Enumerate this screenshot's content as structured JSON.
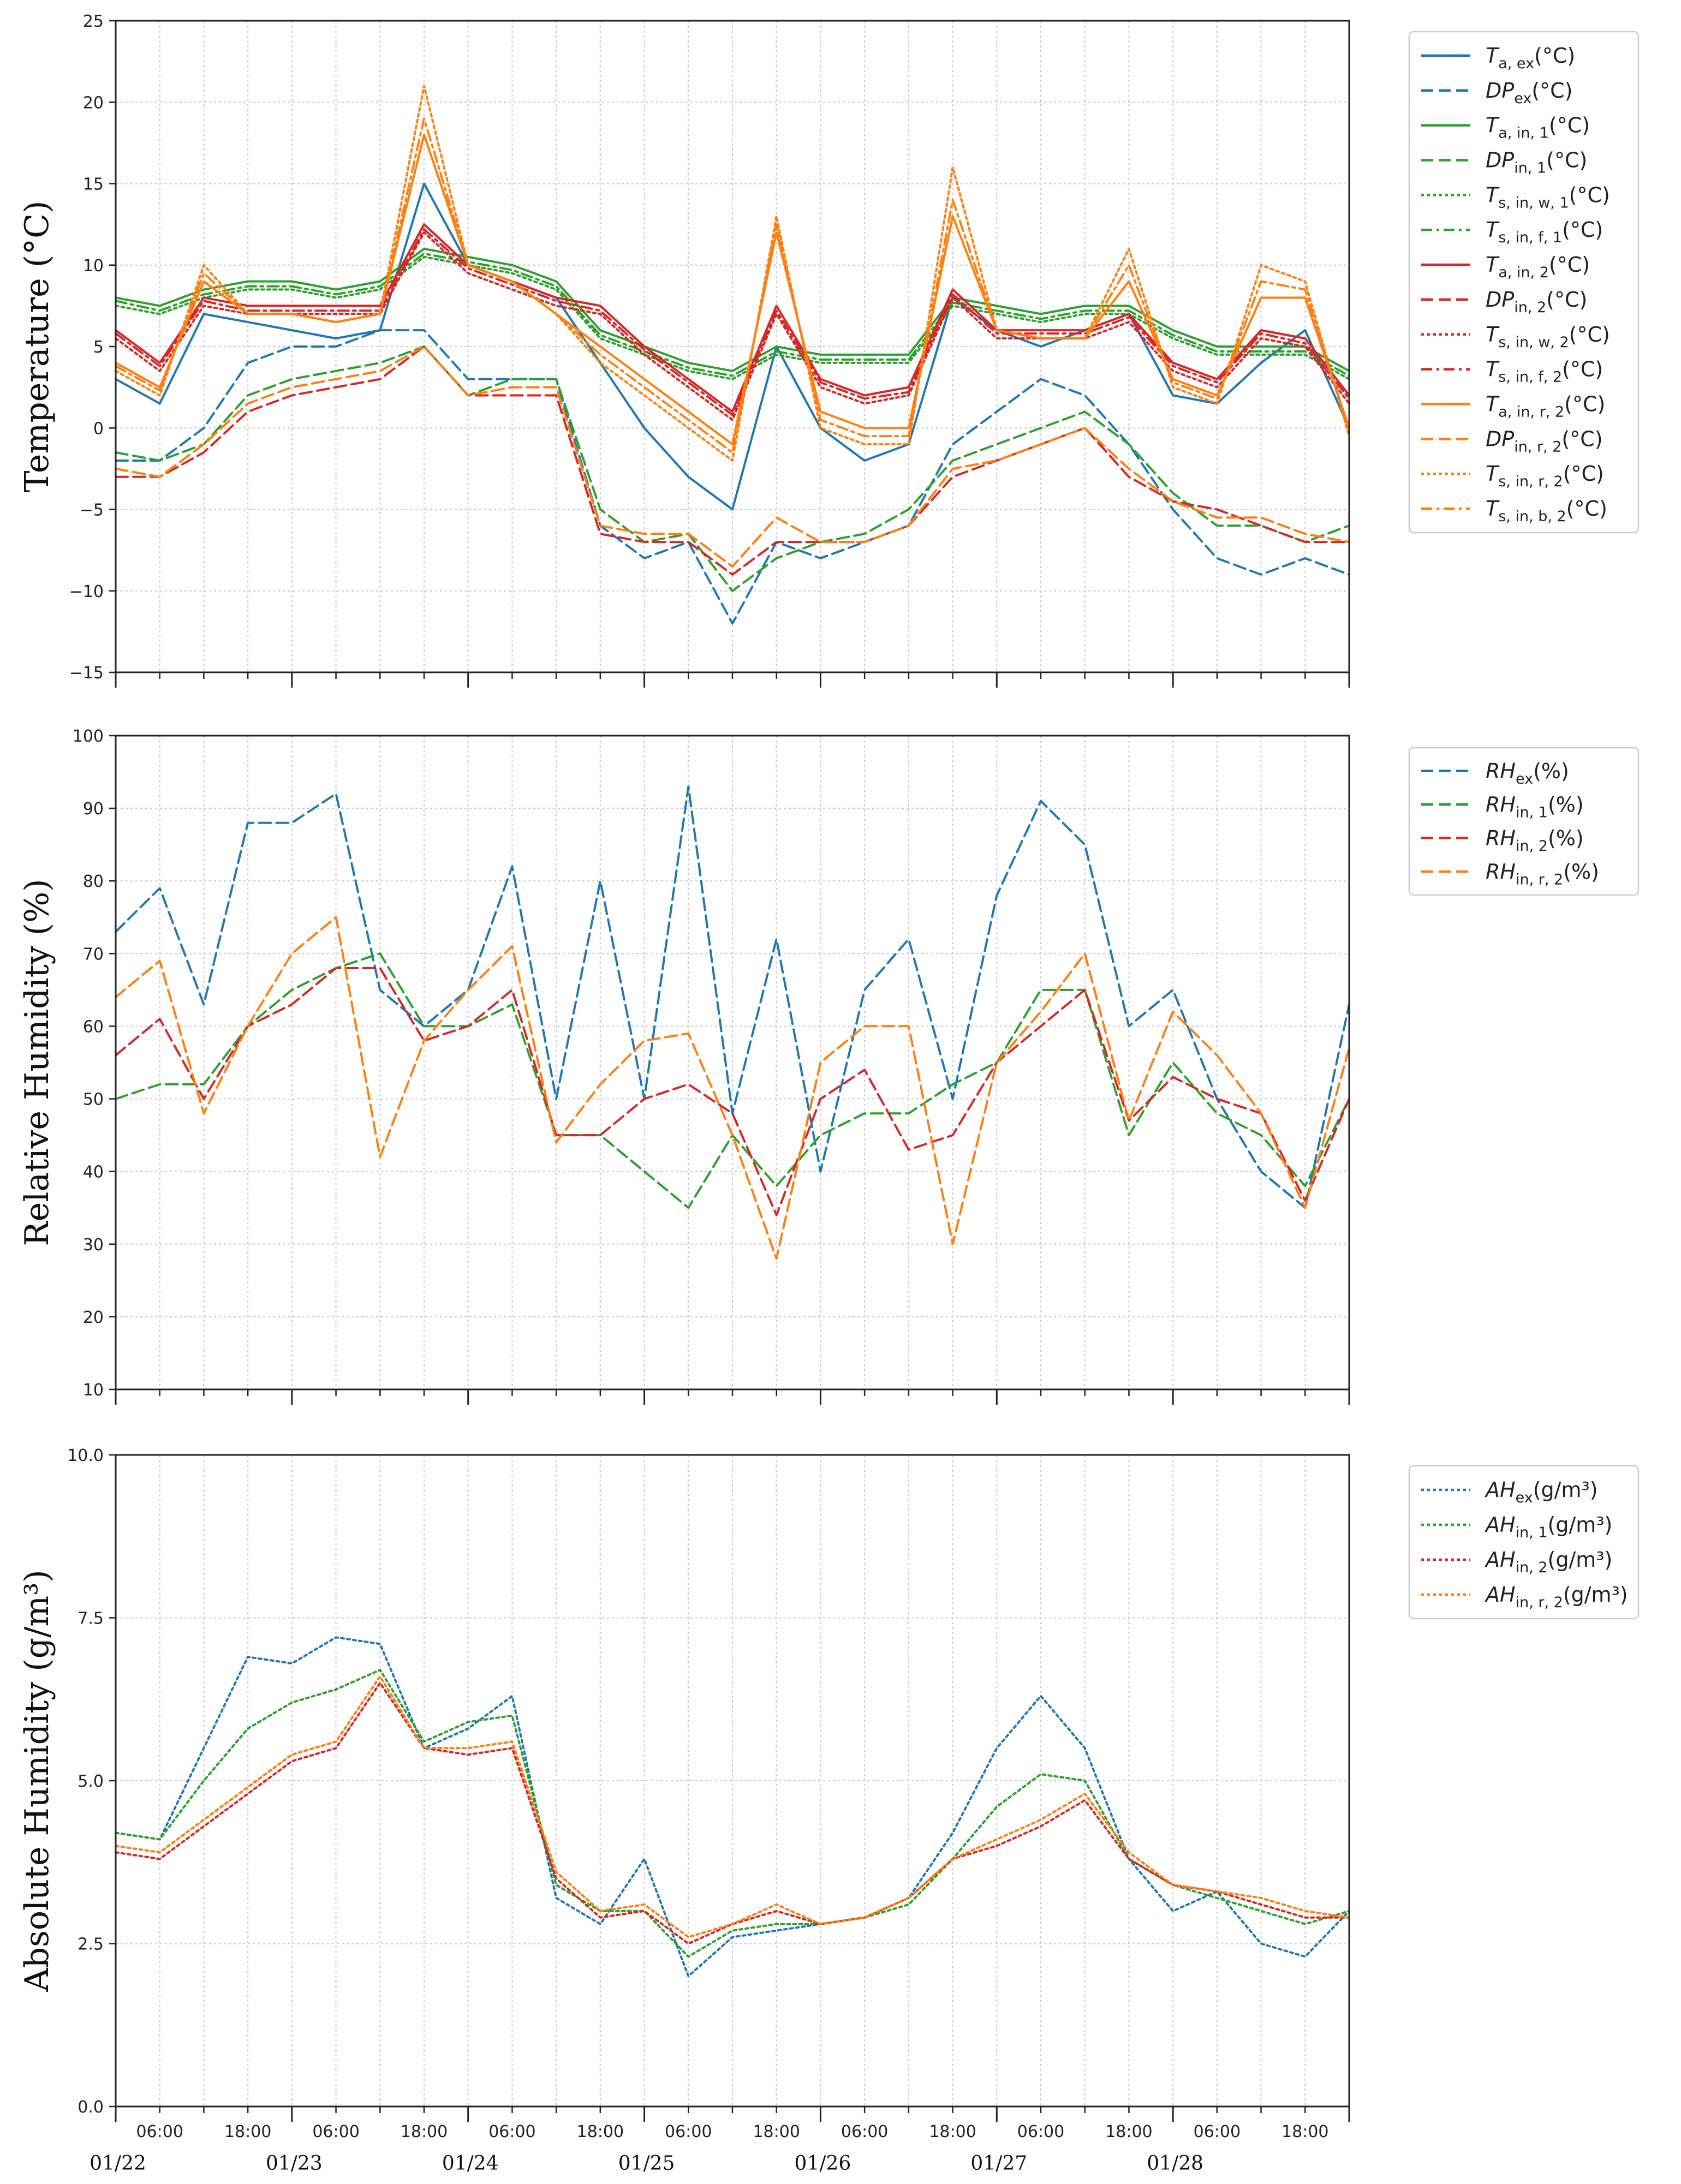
{
  "colors": {
    "blue": "#1f77b4",
    "green": "#2ca02c",
    "red": "#d62728",
    "orange": "#ff7f0e"
  },
  "x_axis": {
    "domain_hours": [
      0,
      168
    ],
    "time_labels": [
      "06:00",
      "18:00",
      "06:00",
      "18:00",
      "06:00",
      "18:00",
      "06:00",
      "18:00",
      "06:00",
      "18:00",
      "06:00",
      "18:00",
      "06:00",
      "18:00"
    ],
    "time_label_hours": [
      6,
      18,
      30,
      42,
      54,
      66,
      78,
      90,
      102,
      114,
      126,
      138,
      150,
      162
    ],
    "date_labels": [
      "01/22",
      "01/23",
      "01/24",
      "01/25",
      "01/26",
      "01/27",
      "01/28"
    ],
    "date_label_hours": [
      0,
      24,
      48,
      72,
      96,
      120,
      144
    ]
  },
  "chart_data": [
    {
      "type": "line",
      "id": "temperature",
      "ylabel": "Temperature (°C)",
      "ylim": [
        -15,
        25
      ],
      "yticks": [
        -15,
        -10,
        -5,
        0,
        5,
        10,
        15,
        20,
        25
      ],
      "ytick_labels": [
        "−15",
        "−10",
        "−5",
        "0",
        "5",
        "10",
        "15",
        "20",
        "25"
      ],
      "grid": true,
      "legend_position": "right",
      "x_hours": [
        0,
        6,
        12,
        18,
        24,
        30,
        36,
        42,
        48,
        54,
        60,
        66,
        72,
        78,
        84,
        90,
        96,
        102,
        108,
        114,
        120,
        126,
        132,
        138,
        144,
        150,
        156,
        162,
        168
      ],
      "series": [
        {
          "name": "Ta,ex(°C)",
          "label": "T",
          "sub": "a, ex",
          "unit": "(°C)",
          "color": "blue",
          "style": "solid",
          "values": [
            3,
            1.5,
            7,
            6.5,
            6,
            5.5,
            6,
            15,
            10,
            9,
            8,
            4,
            0,
            -3,
            -5,
            5,
            0,
            -2,
            -1,
            8,
            6,
            5,
            6,
            7,
            2,
            1.5,
            4,
            6,
            0
          ]
        },
        {
          "name": "DPex(°C)",
          "label": "DP",
          "sub": "ex",
          "unit": "(°C)",
          "color": "blue",
          "style": "dashed",
          "values": [
            -2,
            -2,
            0,
            4,
            5,
            5,
            6,
            6,
            3,
            3,
            3,
            -6,
            -8,
            -7,
            -12,
            -7,
            -8,
            -7,
            -6,
            -1,
            1,
            3,
            2,
            -1,
            -5,
            -8,
            -9,
            -8,
            -9
          ]
        },
        {
          "name": "Ta,in,1(°C)",
          "label": "T",
          "sub": "a, in, 1",
          "unit": "(°C)",
          "color": "green",
          "style": "solid",
          "values": [
            8,
            7.5,
            8.5,
            9,
            9,
            8.5,
            9,
            11,
            10.5,
            10,
            9,
            6,
            5,
            4,
            3.5,
            5,
            4.5,
            4.5,
            4.5,
            8,
            7.5,
            7,
            7.5,
            7.5,
            6,
            5,
            5,
            5,
            3.5
          ]
        },
        {
          "name": "DPin,1(°C)",
          "label": "DP",
          "sub": "in, 1",
          "unit": "(°C)",
          "color": "green",
          "style": "dashed",
          "values": [
            -1.5,
            -2,
            -1,
            2,
            3,
            3.5,
            4,
            5,
            2,
            3,
            3,
            -5,
            -7,
            -6.5,
            -10,
            -8,
            -7,
            -6.5,
            -5,
            -2,
            -1,
            0,
            1,
            -1,
            -4,
            -6,
            -6,
            -7,
            -6
          ]
        },
        {
          "name": "Ts,in,w,1(°C)",
          "label": "T",
          "sub": "s, in, w, 1",
          "unit": "(°C)",
          "color": "green",
          "style": "dotted",
          "values": [
            7.5,
            7,
            8,
            8.5,
            8.5,
            8,
            8.5,
            10.5,
            10,
            9.5,
            8.5,
            5.5,
            4.5,
            3.5,
            3,
            4.5,
            4,
            4,
            4,
            7.5,
            7,
            6.5,
            7,
            7,
            5.5,
            4.5,
            4.5,
            4.5,
            3
          ]
        },
        {
          "name": "Ts,in,f,1(°C)",
          "label": "T",
          "sub": "s, in, f, 1",
          "unit": "(°C)",
          "color": "green",
          "style": "dashdot",
          "values": [
            7.8,
            7.2,
            8.2,
            8.7,
            8.7,
            8.2,
            8.7,
            10.7,
            10.2,
            9.7,
            8.7,
            5.7,
            4.7,
            3.7,
            3.2,
            4.7,
            4.2,
            4.2,
            4.2,
            7.7,
            7.2,
            6.7,
            7.2,
            7.2,
            5.7,
            4.7,
            4.7,
            4.7,
            3.2
          ]
        },
        {
          "name": "Ta,in,2(°C)",
          "label": "T",
          "sub": "a, in, 2",
          "unit": "(°C)",
          "color": "red",
          "style": "solid",
          "values": [
            6,
            4,
            8,
            7.5,
            7.5,
            7.5,
            7.5,
            12.5,
            10,
            9,
            8,
            7.5,
            5,
            3,
            1,
            7.5,
            3,
            2,
            2.5,
            8.5,
            6,
            6,
            6,
            7,
            4,
            3,
            6,
            5.5,
            2
          ]
        },
        {
          "name": "DPin,2(°C)",
          "label": "DP",
          "sub": "in, 2",
          "unit": "(°C)",
          "color": "red",
          "style": "dashed",
          "values": [
            -3,
            -3,
            -1.5,
            1,
            2,
            2.5,
            3,
            5,
            2,
            2,
            2,
            -6.5,
            -7,
            -7,
            -9,
            -7,
            -7,
            -7,
            -6,
            -3,
            -2,
            -1,
            0,
            -3,
            -4.5,
            -5,
            -6,
            -7,
            -7
          ]
        },
        {
          "name": "Ts,in,w,2(°C)",
          "label": "T",
          "sub": "s, in, w, 2",
          "unit": "(°C)",
          "color": "red",
          "style": "dotted",
          "values": [
            5.5,
            3.5,
            7.5,
            7,
            7,
            7,
            7,
            12,
            9.5,
            8.5,
            7.5,
            7,
            4.5,
            2.5,
            0.5,
            7,
            2.5,
            1.5,
            2,
            8,
            5.5,
            5.5,
            5.5,
            6.5,
            3.5,
            2.5,
            5.5,
            5,
            1.5
          ]
        },
        {
          "name": "Ts,in,f,2(°C)",
          "label": "T",
          "sub": "s, in, f, 2",
          "unit": "(°C)",
          "color": "red",
          "style": "dashdot",
          "values": [
            5.8,
            3.8,
            7.8,
            7.2,
            7.2,
            7.2,
            7.2,
            12.2,
            9.8,
            8.8,
            7.8,
            7.2,
            4.8,
            2.8,
            0.8,
            7.2,
            2.8,
            1.8,
            2.2,
            8.2,
            5.8,
            5.8,
            5.8,
            6.8,
            3.8,
            2.8,
            5.8,
            5.2,
            1.8
          ]
        },
        {
          "name": "Ta,in,r,2(°C)",
          "label": "T",
          "sub": "a, in, r, 2",
          "unit": "(°C)",
          "color": "orange",
          "style": "solid",
          "values": [
            4,
            2.5,
            9,
            7,
            7,
            6.5,
            7,
            18,
            10,
            9,
            7,
            5,
            3,
            1,
            -1,
            12,
            1,
            0,
            0,
            13,
            6,
            5.5,
            5.5,
            9,
            3,
            2,
            8,
            8,
            0
          ]
        },
        {
          "name": "DPin,r,2(°C)",
          "label": "DP",
          "sub": "in, r, 2",
          "unit": "(°C)",
          "color": "orange",
          "style": "dashed",
          "values": [
            -2.5,
            -3,
            -1,
            1.5,
            2.5,
            3,
            3.5,
            5,
            2,
            2.5,
            2.5,
            -6,
            -6.5,
            -6.5,
            -8.5,
            -5.5,
            -7,
            -7,
            -6,
            -2.5,
            -2,
            -1,
            0,
            -2.5,
            -4.5,
            -5.5,
            -5.5,
            -6.5,
            -7
          ]
        },
        {
          "name": "Ts,in,r,2(°C)",
          "label": "T",
          "sub": "s, in, r, 2",
          "unit": "(°C)",
          "color": "orange",
          "style": "dotted",
          "values": [
            3.5,
            2,
            10,
            7,
            7,
            6.5,
            7,
            21,
            10,
            9,
            7,
            4,
            2,
            0,
            -2,
            13,
            0,
            -1,
            -1,
            16,
            6,
            5.5,
            5.5,
            11,
            2.5,
            1.5,
            10,
            9,
            -0.5
          ]
        },
        {
          "name": "Ts,in,b,2(°C)",
          "label": "T",
          "sub": "s, in, b, 2",
          "unit": "(°C)",
          "color": "orange",
          "style": "dashdot",
          "values": [
            3.8,
            2.3,
            9.5,
            7,
            7,
            6.5,
            7,
            19,
            10,
            9,
            7,
            4.5,
            2.5,
            0.5,
            -1.5,
            12.5,
            0.5,
            -0.5,
            -0.5,
            14,
            6,
            5.5,
            5.5,
            10,
            2.8,
            1.8,
            9,
            8.5,
            -0.2
          ]
        }
      ]
    },
    {
      "type": "line",
      "id": "relative_humidity",
      "ylabel": "Relative Humidity (%)",
      "ylim": [
        10,
        100
      ],
      "yticks": [
        10,
        20,
        30,
        40,
        50,
        60,
        70,
        80,
        90,
        100
      ],
      "ytick_labels": [
        "10",
        "20",
        "30",
        "40",
        "50",
        "60",
        "70",
        "80",
        "90",
        "100"
      ],
      "grid": true,
      "legend_position": "right",
      "x_hours": [
        0,
        6,
        12,
        18,
        24,
        30,
        36,
        42,
        48,
        54,
        60,
        66,
        72,
        78,
        84,
        90,
        96,
        102,
        108,
        114,
        120,
        126,
        132,
        138,
        144,
        150,
        156,
        162,
        168
      ],
      "series": [
        {
          "name": "RHex(%)",
          "label": "RH",
          "sub": "ex",
          "unit": "(%)",
          "color": "blue",
          "style": "dashed",
          "values": [
            73,
            79,
            63,
            88,
            88,
            92,
            65,
            60,
            65,
            82,
            50,
            80,
            50,
            93,
            48,
            72,
            40,
            65,
            72,
            50,
            78,
            91,
            85,
            60,
            65,
            50,
            40,
            35,
            63
          ]
        },
        {
          "name": "RHin,1(%)",
          "label": "RH",
          "sub": "in, 1",
          "unit": "(%)",
          "color": "green",
          "style": "dashed",
          "values": [
            50,
            52,
            52,
            60,
            65,
            68,
            70,
            60,
            60,
            63,
            45,
            45,
            40,
            35,
            45,
            38,
            45,
            48,
            48,
            52,
            55,
            65,
            65,
            45,
            55,
            48,
            45,
            38,
            50
          ]
        },
        {
          "name": "RHin,2(%)",
          "label": "RH",
          "sub": "in, 2",
          "unit": "(%)",
          "color": "red",
          "style": "dashed",
          "values": [
            56,
            61,
            50,
            60,
            63,
            68,
            68,
            58,
            60,
            65,
            45,
            45,
            50,
            52,
            48,
            34,
            50,
            54,
            43,
            45,
            55,
            60,
            65,
            47,
            53,
            50,
            48,
            36,
            50
          ]
        },
        {
          "name": "RHin,r,2(%)",
          "label": "RH",
          "sub": "in, r, 2",
          "unit": "(%)",
          "color": "orange",
          "style": "dashed",
          "values": [
            64,
            69,
            48,
            60,
            70,
            75,
            42,
            58,
            65,
            71,
            44,
            52,
            58,
            59,
            45,
            28,
            55,
            60,
            60,
            30,
            55,
            62,
            70,
            47,
            62,
            56,
            48,
            35,
            57
          ]
        }
      ]
    },
    {
      "type": "line",
      "id": "absolute_humidity",
      "ylabel": "Absolute Humidity (g/m³)",
      "ylim": [
        0.0,
        10.0
      ],
      "yticks": [
        0.0,
        2.5,
        5.0,
        7.5,
        10.0
      ],
      "ytick_labels": [
        "0.0",
        "2.5",
        "5.0",
        "7.5",
        "10.0"
      ],
      "grid": true,
      "legend_position": "right",
      "x_hours": [
        0,
        6,
        12,
        18,
        24,
        30,
        36,
        42,
        48,
        54,
        60,
        66,
        72,
        78,
        84,
        90,
        96,
        102,
        108,
        114,
        120,
        126,
        132,
        138,
        144,
        150,
        156,
        162,
        168
      ],
      "series": [
        {
          "name": "AHex(g/m³)",
          "label": "AH",
          "sub": "ex",
          "unit": "(g/m³)",
          "color": "blue",
          "style": "dotted",
          "values": [
            4.2,
            4.1,
            5.5,
            6.9,
            6.8,
            7.2,
            7.1,
            5.5,
            5.8,
            6.3,
            3.2,
            2.8,
            3.8,
            2.0,
            2.6,
            2.7,
            2.8,
            2.9,
            3.2,
            4.2,
            5.5,
            6.3,
            5.5,
            3.8,
            3.0,
            3.3,
            2.5,
            2.3,
            3.0
          ]
        },
        {
          "name": "AHin,1(g/m³)",
          "label": "AH",
          "sub": "in, 1",
          "unit": "(g/m³)",
          "color": "green",
          "style": "dotted",
          "values": [
            4.2,
            4.1,
            5.0,
            5.8,
            6.2,
            6.4,
            6.7,
            5.6,
            5.9,
            6.0,
            3.4,
            3.0,
            3.0,
            2.3,
            2.7,
            2.8,
            2.8,
            2.9,
            3.1,
            3.8,
            4.6,
            5.1,
            5.0,
            3.8,
            3.4,
            3.2,
            3.0,
            2.8,
            3.0
          ]
        },
        {
          "name": "AHin,2(g/m³)",
          "label": "AH",
          "sub": "in, 2",
          "unit": "(g/m³)",
          "color": "red",
          "style": "dotted",
          "values": [
            3.9,
            3.8,
            4.3,
            4.8,
            5.3,
            5.5,
            6.5,
            5.5,
            5.4,
            5.5,
            3.5,
            2.9,
            3.0,
            2.5,
            2.8,
            3.0,
            2.8,
            2.9,
            3.2,
            3.8,
            4.0,
            4.3,
            4.7,
            3.8,
            3.4,
            3.3,
            3.1,
            2.9,
            2.9
          ]
        },
        {
          "name": "AHin,r,2(g/m³)",
          "label": "AH",
          "sub": "in, r, 2",
          "unit": "(g/m³)",
          "color": "orange",
          "style": "dotted",
          "values": [
            4.0,
            3.9,
            4.4,
            4.9,
            5.4,
            5.6,
            6.6,
            5.5,
            5.5,
            5.6,
            3.6,
            3.0,
            3.1,
            2.6,
            2.8,
            3.1,
            2.8,
            2.9,
            3.2,
            3.8,
            4.1,
            4.4,
            4.8,
            3.9,
            3.4,
            3.3,
            3.2,
            3.0,
            2.9
          ]
        }
      ]
    }
  ]
}
